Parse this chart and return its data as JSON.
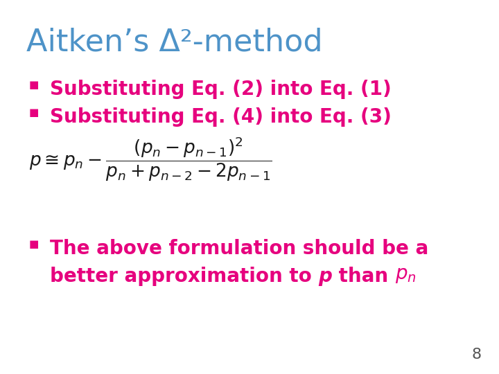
{
  "title": "Aitken’s Δ²-method",
  "title_color": "#4e93c8",
  "bullet_color": "#e6007e",
  "bullet_char": "■",
  "bullet1": "Substituting Eq. (2) into Eq. (1)",
  "bullet2": "Substituting Eq. (4) into Eq. (3)",
  "bullet3_line1": "The above formulation should be a",
  "bullet3_line2_pre": "better approximation to ",
  "bullet3_italic_p": "p",
  "bullet3_than": " than ",
  "bullet3_pn": "$p_n$",
  "formula": "$p \\cong p_n - \\dfrac{(p_n - p_{n-1})^2}{p_n + p_{n-2} - 2p_{n-1}}$",
  "page_number": "8",
  "bg_color": "#ffffff",
  "formula_color": "#1a1a1a",
  "page_color": "#555555",
  "title_fontsize": 32,
  "bullet_fontsize": 20,
  "formula_fontsize": 19,
  "page_fontsize": 16
}
